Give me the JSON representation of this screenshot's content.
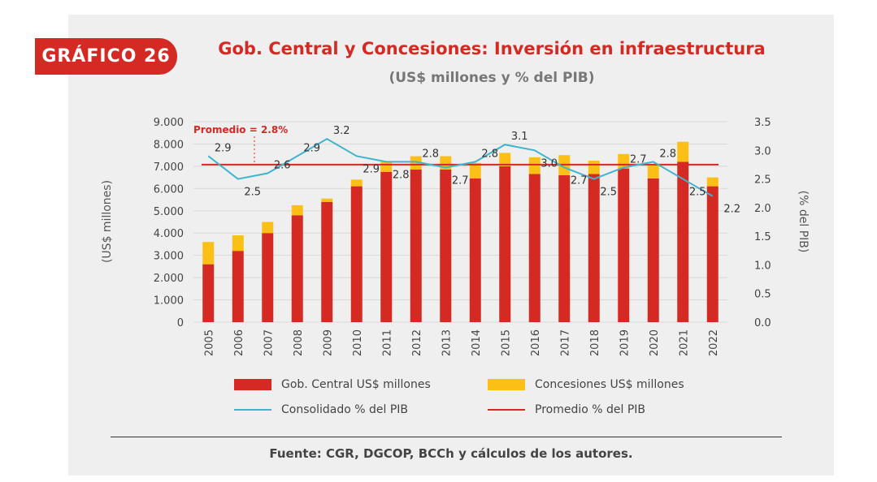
{
  "badge": "GRÁFICO 26",
  "source": "Fuente: CGR, DGCOP, BCCh y cálculos de los autores.",
  "colors": {
    "gob": "#d42a23",
    "conc": "#fbbf16",
    "line": "#3fb4cf",
    "avg": "#d42a23"
  },
  "chart_data": {
    "type": "bar",
    "stacked": true,
    "title": "Gob. Central y Concesiones: Inversión en infraestructura",
    "subtitle": "(US$ millones y % del PIB)",
    "ylabel": "(US$ millones)",
    "y2label": "(% del PIB)",
    "ylim": [
      0,
      9000
    ],
    "y2lim": [
      0,
      3.5
    ],
    "yticks": [
      "0",
      "1.000",
      "2.000",
      "3.000",
      "4.000",
      "5.000",
      "6.000",
      "7.000",
      "8.000",
      "9.000"
    ],
    "y2ticks": [
      "0.0",
      "0.5",
      "1.0",
      "1.5",
      "2.0",
      "2.5",
      "3.0",
      "3.5"
    ],
    "grid": true,
    "legend_placement": "bottom",
    "categories": [
      "2005",
      "2006",
      "2007",
      "2008",
      "2009",
      "2010",
      "2011",
      "2012",
      "2013",
      "2014",
      "2015",
      "2016",
      "2017",
      "2018",
      "2019",
      "2020",
      "2021",
      "2022"
    ],
    "series": [
      {
        "name": "Gob. Central US$ millones",
        "type": "bar",
        "values": [
          2600,
          3200,
          4000,
          4800,
          5400,
          6100,
          6750,
          6850,
          6850,
          6450,
          7000,
          6650,
          6600,
          6650,
          6900,
          6450,
          7200,
          6100
        ]
      },
      {
        "name": "Concesiones US$ millones",
        "type": "bar",
        "values": [
          1000,
          700,
          500,
          450,
          150,
          300,
          450,
          600,
          600,
          700,
          600,
          750,
          900,
          600,
          650,
          600,
          900,
          400
        ]
      },
      {
        "name": "Consolidado % del PIB",
        "type": "line",
        "axis": "right",
        "values": [
          2.9,
          2.5,
          2.6,
          2.9,
          3.2,
          2.9,
          2.8,
          2.8,
          2.7,
          2.8,
          3.1,
          3.0,
          2.7,
          2.5,
          2.7,
          2.8,
          2.5,
          2.2
        ],
        "labels": [
          "2.9",
          "2.5",
          "2.6",
          "2.9",
          "3.2",
          "2.9",
          "2.8",
          "2.8",
          "2.7",
          "2.8",
          "3.1",
          "3.0",
          "2.7",
          "2.5",
          "2.7",
          "2.8",
          "2.5",
          "2.2"
        ]
      },
      {
        "name": "Promedio % del PIB",
        "type": "line",
        "axis": "right",
        "value": 2.75
      }
    ],
    "annotation": "Promedio = 2.8%"
  }
}
